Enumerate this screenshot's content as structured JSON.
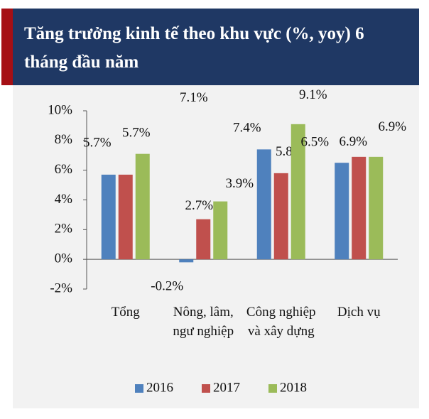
{
  "chart_data": {
    "type": "bar",
    "title": "Tăng trưởng kinh tế theo khu vực (%, yoy) 6 tháng đầu năm",
    "categories": [
      "Tổng",
      "Nông, lâm, ngư nghiệp",
      "Công nghiệp và xây dựng",
      "Dịch vụ"
    ],
    "series": [
      {
        "name": "2016",
        "color": "#4f81bd",
        "values": [
          5.7,
          -0.2,
          7.4,
          6.5
        ],
        "value_labels": [
          "5.7%",
          "-0.2%",
          "7.4%",
          "6.5%"
        ]
      },
      {
        "name": "2017",
        "color": "#c0504d",
        "values": [
          5.7,
          2.7,
          5.8,
          6.9
        ],
        "value_labels": [
          "5.7%",
          "2.7%",
          "5.8%",
          "6.9%"
        ]
      },
      {
        "name": "2018",
        "color": "#9bbb59",
        "values": [
          7.1,
          3.9,
          9.1,
          6.9
        ],
        "value_labels": [
          "7.1%",
          "3.9%",
          "9.1%",
          "6.9%"
        ]
      }
    ],
    "ylim": [
      -2,
      10
    ],
    "yticks": [
      {
        "value": -2,
        "label": "-2%"
      },
      {
        "value": 0,
        "label": "0%"
      },
      {
        "value": 2,
        "label": "2%"
      },
      {
        "value": 4,
        "label": "4%"
      },
      {
        "value": 6,
        "label": "6%"
      },
      {
        "value": 8,
        "label": "8%"
      },
      {
        "value": 10,
        "label": "10%"
      }
    ],
    "legend": "bottom"
  }
}
